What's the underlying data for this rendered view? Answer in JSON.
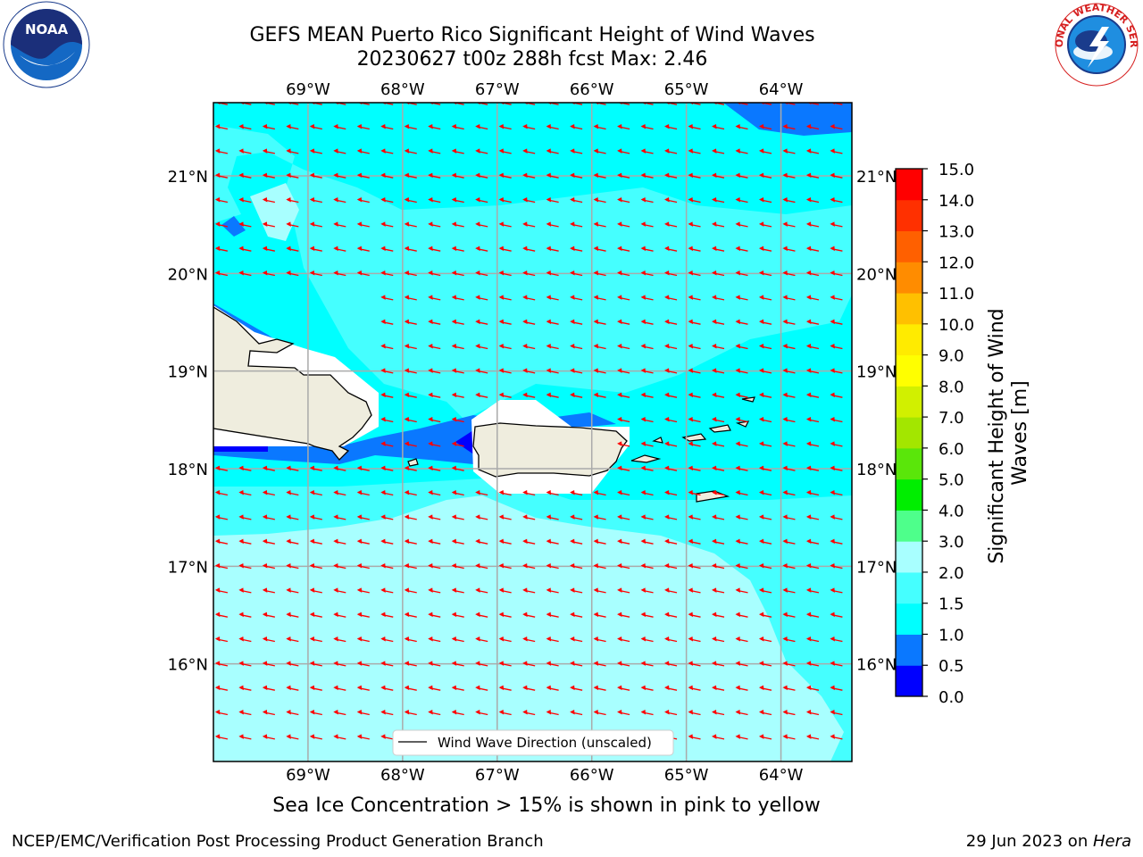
{
  "title_line1": "GEFS MEAN Puerto Rico Significant Height of Wind Waves",
  "title_line2": "20230627 t00z 288h fcst   Max: 2.46",
  "footer_left": "NCEP/EMC/Verification Post Processing Product Generation Branch",
  "footer_right_date": "29 Jun 2023 on ",
  "footer_right_host": "Hera",
  "sea_ice_note": "Sea Ice Concentration > 15% is shown in pink to yellow",
  "map": {
    "lon_range": [
      -70.0,
      -63.25
    ],
    "lat_range": [
      15.0,
      21.75
    ],
    "lon_ticks": [
      -69,
      -68,
      -67,
      -66,
      -65,
      -64
    ],
    "lat_ticks": [
      16,
      17,
      18,
      19,
      20,
      21
    ],
    "lon_tick_labels": [
      "69°W",
      "68°W",
      "67°W",
      "66°W",
      "65°W",
      "64°W"
    ],
    "lat_tick_labels": [
      "16°N",
      "17°N",
      "18°N",
      "19°N",
      "20°N",
      "21°N"
    ],
    "arrow_color": "#ff0000",
    "land_color": "#efedde",
    "gridlines": true
  },
  "legend": {
    "label": "Wind Wave Direction (unscaled)",
    "placement": "bottom-center"
  },
  "colorbar": {
    "label_line1": "Significant Height of Wind",
    "label_line2": "Waves [m]",
    "levels": [
      0.0,
      0.5,
      1.0,
      1.5,
      2.0,
      3.0,
      4.0,
      5.0,
      6.0,
      7.0,
      8.0,
      9.0,
      10.0,
      11.0,
      12.0,
      13.0,
      14.0,
      15.0
    ],
    "tick_labels": [
      "0.0",
      "0.5",
      "1.0",
      "1.5",
      "2.0",
      "3.0",
      "4.0",
      "5.0",
      "6.0",
      "7.0",
      "8.0",
      "9.0",
      "10.0",
      "11.0",
      "12.0",
      "13.0",
      "14.0",
      "15.0"
    ],
    "colors": [
      "#0000ff",
      "#0a78ff",
      "#00ffff",
      "#45ffff",
      "#a8ffff",
      "#4eff8b",
      "#00ee00",
      "#5ae60a",
      "#a3e600",
      "#d1f000",
      "#ffff00",
      "#ffeb00",
      "#ffc000",
      "#ff8c00",
      "#ff6000",
      "#ff3000",
      "#ff0000"
    ]
  },
  "logos": {
    "noaa_text": "NOAA",
    "nws_text": "NATIONAL WEATHER SERVICE"
  }
}
